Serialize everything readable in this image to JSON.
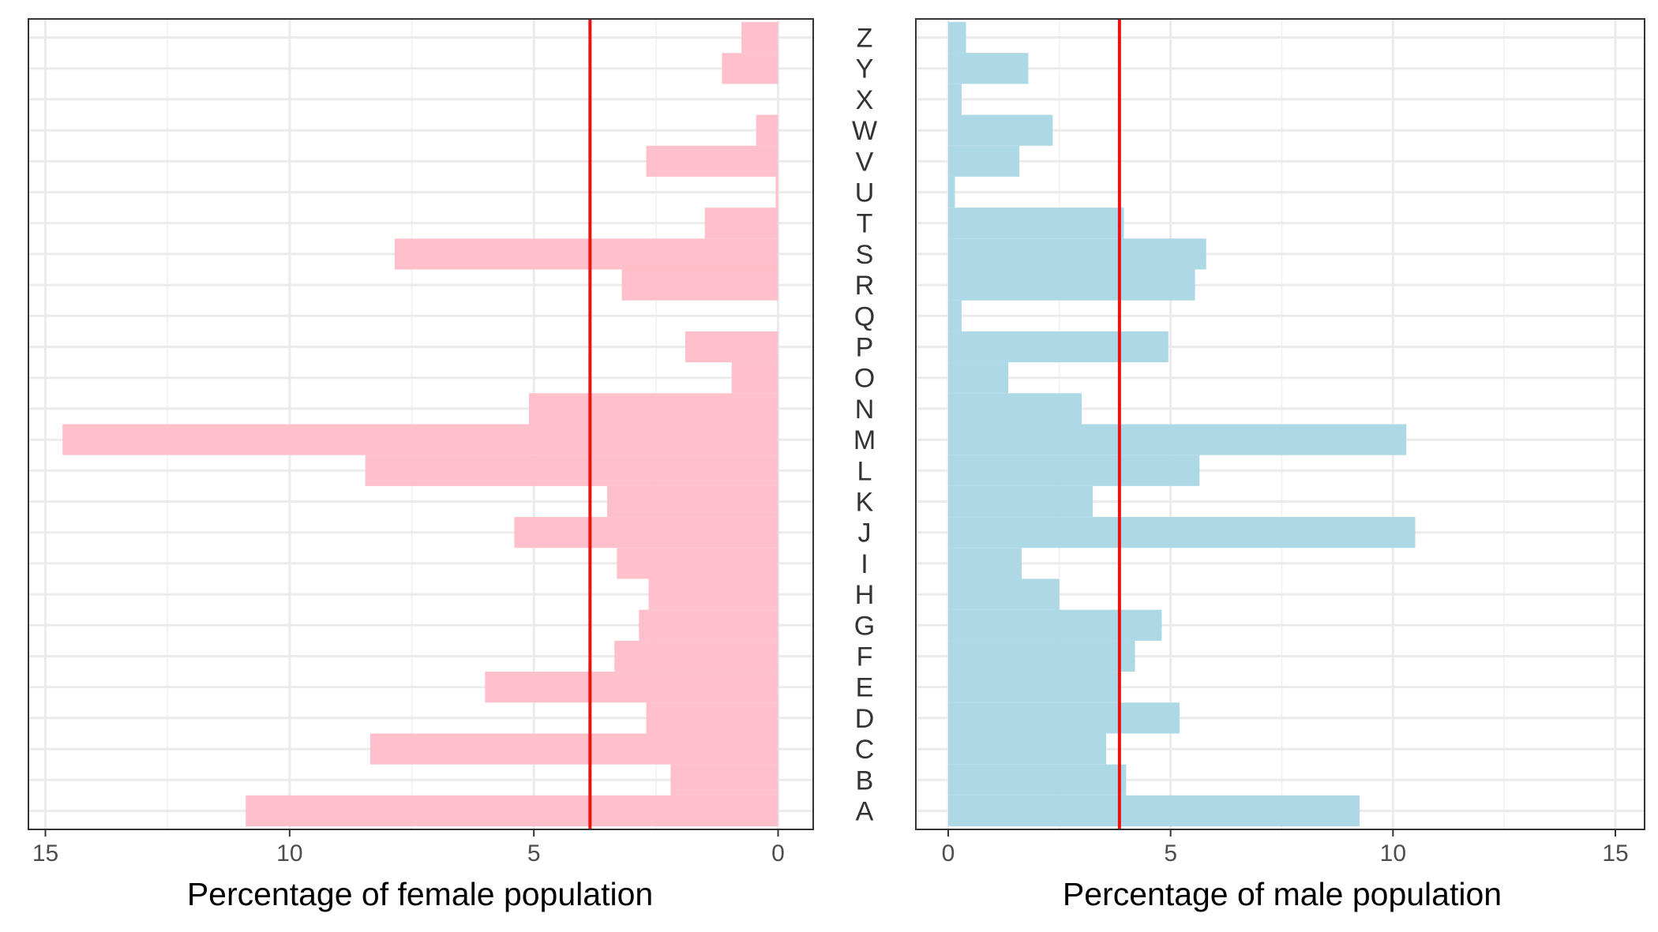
{
  "chart_data": {
    "type": "bar",
    "categories": [
      "A",
      "B",
      "C",
      "D",
      "E",
      "F",
      "G",
      "H",
      "I",
      "J",
      "K",
      "L",
      "M",
      "N",
      "O",
      "P",
      "Q",
      "R",
      "S",
      "T",
      "U",
      "V",
      "W",
      "X",
      "Y",
      "Z"
    ],
    "reference_line": {
      "value": 3.85,
      "color": "#ee1111"
    },
    "panels": [
      {
        "name": "female",
        "xlabel": "Percentage of female population",
        "direction": "reversed",
        "xlim": [
          0,
          15
        ],
        "ticks": [
          0,
          5,
          10,
          15
        ],
        "tick_labels": [
          "0",
          "5",
          "10",
          "15"
        ],
        "bar_color": "#ffc0cb",
        "values": [
          10.9,
          2.2,
          8.35,
          2.7,
          6.0,
          3.35,
          2.85,
          2.65,
          3.3,
          5.4,
          3.5,
          8.45,
          14.65,
          5.1,
          0.95,
          1.9,
          0.0,
          3.2,
          7.85,
          1.5,
          0.05,
          2.7,
          0.45,
          0.0,
          1.15,
          0.75
        ]
      },
      {
        "name": "male",
        "xlabel": "Percentage of male population",
        "direction": "normal",
        "xlim": [
          0,
          15
        ],
        "ticks": [
          0,
          5,
          10,
          15
        ],
        "tick_labels": [
          "0",
          "5",
          "10",
          "15"
        ],
        "bar_color": "#add8e6",
        "values": [
          9.25,
          4.0,
          3.55,
          5.2,
          3.85,
          4.2,
          4.8,
          2.5,
          1.65,
          10.5,
          3.25,
          5.65,
          10.3,
          3.0,
          1.35,
          4.95,
          0.3,
          5.55,
          5.8,
          3.95,
          0.15,
          1.6,
          2.35,
          0.3,
          1.8,
          0.4
        ]
      }
    ]
  }
}
